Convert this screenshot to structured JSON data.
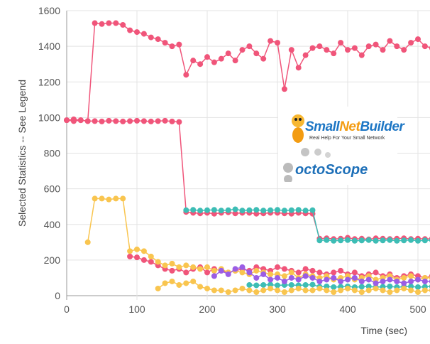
{
  "chart_data": {
    "type": "line",
    "title": "",
    "xlabel": "Time (sec)",
    "ylabel": "Selected Statistics -- See Legend",
    "xlim": [
      0,
      520
    ],
    "ylim": [
      0,
      1600
    ],
    "xticks": [
      0,
      100,
      200,
      300,
      400,
      500
    ],
    "yticks": [
      0,
      200,
      400,
      600,
      800,
      1000,
      1200,
      1400,
      1600
    ],
    "grid": true,
    "legend": "none visible",
    "x": [
      0,
      10,
      20,
      30,
      40,
      50,
      60,
      70,
      80,
      90,
      100,
      110,
      120,
      130,
      140,
      150,
      160,
      170,
      180,
      190,
      200,
      210,
      220,
      230,
      240,
      250,
      260,
      270,
      280,
      290,
      300,
      310,
      320,
      330,
      340,
      350,
      360,
      370,
      380,
      390,
      400,
      410,
      420,
      430,
      440,
      450,
      460,
      470,
      480,
      490,
      500,
      510,
      520
    ],
    "series": [
      {
        "color": "#f0557a",
        "values": [
          985,
          990,
          985,
          980,
          1530,
          1525,
          1530,
          1530,
          1520,
          1490,
          1480,
          1470,
          1450,
          1440,
          1420,
          1400,
          1410,
          1240,
          1320,
          1300,
          1340,
          1310,
          1330,
          1360,
          1320,
          1380,
          1400,
          1360,
          1330,
          1430,
          1420,
          1160,
          1380,
          1280,
          1350,
          1390,
          1400,
          1380,
          1360,
          1420,
          1380,
          1390,
          1350,
          1400,
          1410,
          1380,
          1430,
          1400,
          1380,
          1420,
          1440,
          1400,
          1390
        ]
      },
      {
        "color": "#f0557a",
        "values": [
          985,
          980,
          985,
          980,
          980,
          978,
          982,
          980,
          978,
          980,
          982,
          980,
          978,
          980,
          982,
          978,
          975,
          470,
          465,
          462,
          465,
          460,
          465,
          468,
          462,
          465,
          465,
          460,
          462,
          465,
          465,
          462,
          460,
          465,
          462,
          460,
          320,
          322,
          318,
          320,
          325,
          318,
          320,
          316,
          322,
          320,
          318,
          320,
          322,
          318,
          320,
          318,
          320
        ]
      },
      {
        "color": "#f0557a",
        "values": [
          null,
          null,
          null,
          null,
          null,
          null,
          null,
          null,
          null,
          220,
          215,
          200,
          190,
          170,
          150,
          140,
          150,
          130,
          150,
          160,
          130,
          150,
          140,
          130,
          140,
          150,
          140,
          160,
          150,
          140,
          160,
          150,
          140,
          130,
          150,
          140,
          130,
          120,
          130,
          140,
          120,
          130,
          110,
          120,
          130,
          110,
          120,
          100,
          110,
          120,
          110,
          100,
          110
        ]
      },
      {
        "color": "#3dbdb5",
        "values": [
          null,
          null,
          null,
          null,
          null,
          null,
          null,
          null,
          null,
          null,
          null,
          null,
          null,
          null,
          null,
          null,
          null,
          480,
          482,
          478,
          480,
          482,
          478,
          480,
          485,
          478,
          480,
          482,
          478,
          480,
          482,
          478,
          480,
          482,
          478,
          480,
          310,
          312,
          308,
          310,
          312,
          308,
          310,
          312,
          308,
          310,
          312,
          308,
          310,
          312,
          308,
          310,
          312
        ]
      },
      {
        "color": "#3dbdb5",
        "values": [
          null,
          null,
          null,
          null,
          null,
          null,
          null,
          null,
          null,
          null,
          null,
          null,
          null,
          null,
          null,
          null,
          null,
          null,
          null,
          null,
          null,
          null,
          null,
          null,
          null,
          null,
          60,
          58,
          60,
          62,
          58,
          60,
          60,
          58,
          60,
          62,
          50,
          52,
          48,
          50,
          52,
          48,
          50,
          52,
          48,
          50,
          52,
          48,
          50,
          52,
          48,
          50,
          52
        ]
      },
      {
        "color": "#f9c54f",
        "values": [
          null,
          null,
          null,
          300,
          545,
          545,
          540,
          545,
          545,
          250,
          260,
          250,
          220,
          190,
          170,
          180,
          160,
          170,
          160,
          150,
          160,
          140,
          150,
          130,
          140,
          130,
          120,
          140,
          130,
          120,
          120,
          110,
          130,
          100,
          120,
          110,
          100,
          110,
          90,
          100,
          110,
          90,
          100,
          110,
          90,
          100,
          110,
          90,
          100,
          110,
          90,
          100,
          100
        ]
      },
      {
        "color": "#f9c54f",
        "values": [
          null,
          null,
          null,
          null,
          null,
          null,
          null,
          null,
          null,
          null,
          null,
          null,
          null,
          40,
          70,
          80,
          60,
          70,
          80,
          50,
          40,
          30,
          30,
          20,
          30,
          40,
          30,
          20,
          30,
          40,
          30,
          20,
          30,
          40,
          30,
          30,
          40,
          30,
          20,
          30,
          40,
          30,
          20,
          30,
          40,
          30,
          20,
          30,
          40,
          30,
          20,
          30,
          30
        ]
      },
      {
        "color": "#9b5de5",
        "values": [
          null,
          null,
          null,
          null,
          null,
          null,
          null,
          null,
          null,
          null,
          null,
          null,
          null,
          null,
          null,
          null,
          null,
          null,
          null,
          null,
          null,
          110,
          140,
          120,
          150,
          160,
          130,
          100,
          120,
          90,
          100,
          80,
          100,
          90,
          110,
          100,
          80,
          90,
          100,
          80,
          90,
          100,
          80,
          90,
          70,
          80,
          90,
          80,
          70,
          80,
          90,
          80,
          80
        ]
      }
    ]
  },
  "logo": {
    "brand": "SmallNetBuilder",
    "brand_a": "Small",
    "brand_b": "Net",
    "brand_c": "Builder",
    "tagline": "Real Help For Your Small Network",
    "partner": "octoScope"
  }
}
